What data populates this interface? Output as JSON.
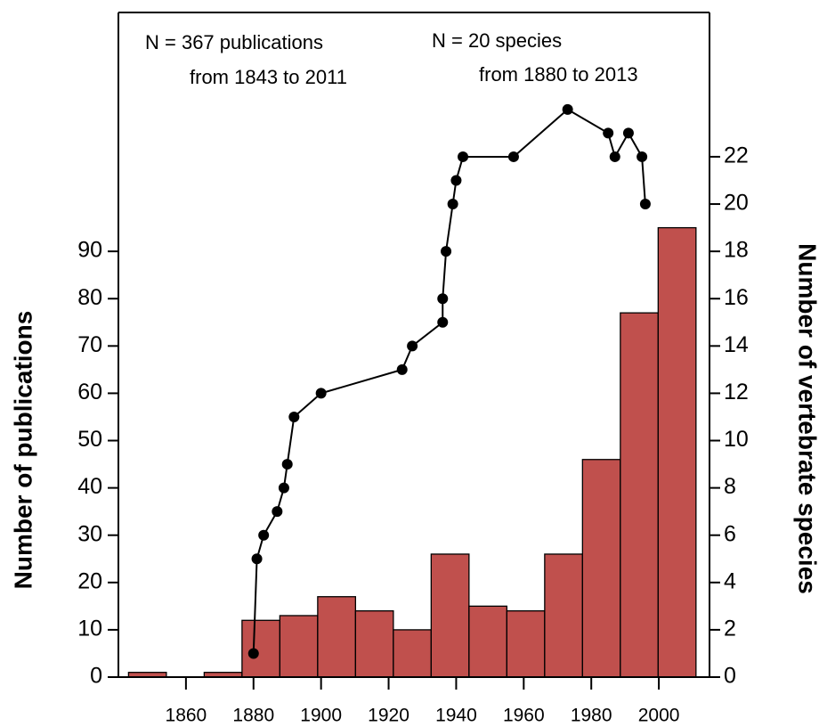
{
  "chart_data": {
    "type": "histogram",
    "bins": [
      1843,
      1854.2,
      1865.4,
      1876.6,
      1887.8,
      1899,
      1910.2,
      1921.4,
      1932.6,
      1943.8,
      1955,
      1966.2,
      1977.4,
      1988.6,
      1999.8,
      2011
    ],
    "values": [
      1,
      0,
      1,
      12,
      13,
      17,
      14,
      10,
      26,
      15,
      14,
      26,
      46,
      77,
      95
    ],
    "color": "#c0504d",
    "ylabel": "Number of publications",
    "y2label": "Number of vertebrate species",
    "xlim": [
      1840,
      2015
    ],
    "xticks": [
      1860,
      1880,
      1900,
      1920,
      1940,
      1960,
      1980,
      2000
    ],
    "ylim": [
      0,
      140.5
    ],
    "yticks": [
      0,
      10,
      20,
      30,
      40,
      50,
      60,
      70,
      80,
      90
    ],
    "y2lim": [
      0,
      28.1
    ],
    "y2ticks": [
      0,
      2,
      4,
      6,
      8,
      10,
      12,
      14,
      16,
      18,
      20,
      22
    ],
    "overlay": {
      "type": "line",
      "axis": "y2",
      "color": "#000000",
      "x": [
        1880,
        1881,
        1883,
        1887,
        1889,
        1890,
        1892,
        1900,
        1924,
        1927,
        1936,
        1936,
        1937,
        1939,
        1940,
        1942,
        1957,
        1973,
        1985,
        1987,
        1991,
        1995,
        1996
      ],
      "values": [
        1,
        5,
        6,
        7,
        8,
        9,
        11,
        12,
        13,
        14,
        15,
        16,
        18,
        20,
        21,
        22,
        22,
        24,
        23,
        22,
        23,
        22,
        20
      ]
    },
    "annotations": [
      "N = 367 publications",
      "from 1843 to 2011",
      "N = 20 species",
      "from 1880 to 2013"
    ]
  }
}
